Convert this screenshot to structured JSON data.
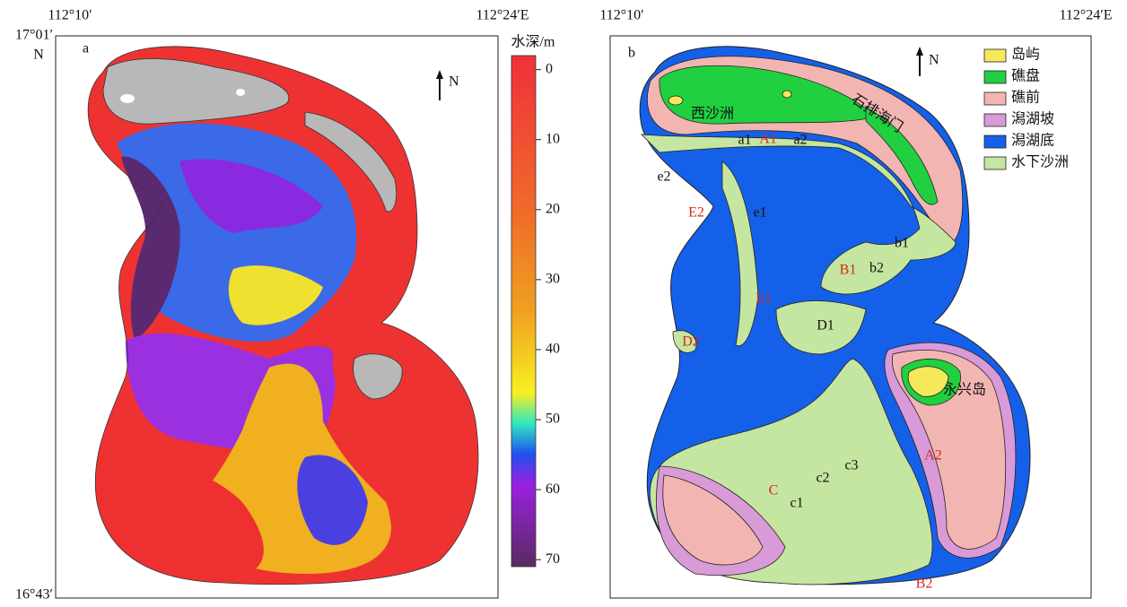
{
  "panel_a": {
    "label": "a",
    "north": "N",
    "lon_left": "112°10′",
    "lon_right": "112°24′E",
    "lat_top": "17°01′",
    "lat_hemisphere": "N",
    "lat_bottom": "16°43′",
    "colorbar": {
      "title": "水深/m",
      "lim": [
        -2,
        71
      ],
      "ticks": [
        0,
        10,
        20,
        30,
        40,
        50,
        60,
        70
      ]
    }
  },
  "panel_b": {
    "label": "b",
    "north": "N",
    "lon_left": "112°10′",
    "lon_right": "112°24′E",
    "legend": [
      {
        "name": "岛屿",
        "color": "#f5e85a"
      },
      {
        "name": "礁盘",
        "color": "#20d040"
      },
      {
        "name": "礁前",
        "color": "#f2b5b2"
      },
      {
        "name": "潟湖坡",
        "color": "#d99ad8"
      },
      {
        "name": "潟湖底",
        "color": "#1560e8"
      },
      {
        "name": "水下沙洲",
        "color": "#c5e6a0"
      }
    ],
    "places": [
      "西沙洲",
      "石排海门",
      "永兴岛"
    ],
    "sites": [
      "a1",
      "A1",
      "a2",
      "e2",
      "E2",
      "e1",
      "E1",
      "b1",
      "B1",
      "b2",
      "D1",
      "D2",
      "C",
      "c1",
      "c2",
      "c3",
      "A2",
      "B2"
    ]
  }
}
